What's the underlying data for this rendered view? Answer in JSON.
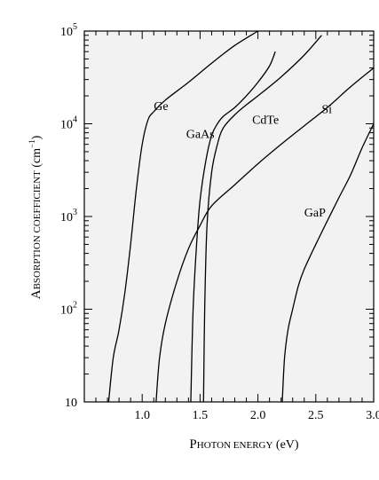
{
  "chart_data": {
    "type": "line",
    "xlabel": "Photon energy (eV)",
    "ylabel": "Absorption coefficient (cm⁻¹)",
    "xlim": [
      0.5,
      3.0
    ],
    "ylim": [
      10,
      100000
    ],
    "y_scale": "log",
    "x_ticks": [
      "1.0",
      "1.5",
      "2.0",
      "2.5",
      "3.0"
    ],
    "y_ticks": [
      {
        "base": "10",
        "exp": ""
      },
      {
        "base": "10",
        "exp": "2"
      },
      {
        "base": "10",
        "exp": "3"
      },
      {
        "base": "10",
        "exp": "4"
      },
      {
        "base": "10",
        "exp": "5"
      }
    ],
    "grid": false,
    "series": [
      {
        "name": "Ge",
        "x": [
          0.71,
          0.75,
          0.8,
          0.85,
          0.9,
          0.95,
          1.0,
          1.05,
          1.1,
          1.2,
          1.4,
          1.6,
          1.8,
          2.0
        ],
        "y": [
          10,
          30,
          60,
          150,
          500,
          2000,
          6000,
          11000,
          13500,
          18000,
          28000,
          45000,
          70000,
          100000
        ]
      },
      {
        "name": "GaAs",
        "x": [
          1.42,
          1.44,
          1.47,
          1.5,
          1.55,
          1.6,
          1.65,
          1.7,
          1.8,
          1.9,
          2.0,
          2.1,
          2.15
        ],
        "y": [
          10,
          100,
          500,
          1500,
          4000,
          7500,
          10000,
          12000,
          15000,
          20000,
          28000,
          42000,
          60000
        ]
      },
      {
        "name": "CdTe",
        "x": [
          1.53,
          1.54,
          1.56,
          1.6,
          1.65,
          1.7,
          1.8,
          1.9,
          2.0,
          2.2,
          2.4,
          2.55
        ],
        "y": [
          10,
          100,
          800,
          3000,
          6000,
          9000,
          12500,
          16000,
          20000,
          32000,
          55000,
          90000
        ]
      },
      {
        "name": "Si",
        "x": [
          1.12,
          1.15,
          1.2,
          1.3,
          1.4,
          1.5,
          1.6,
          1.8,
          2.0,
          2.2,
          2.4,
          2.6,
          2.8,
          3.0
        ],
        "y": [
          10,
          30,
          70,
          200,
          450,
          800,
          1300,
          2200,
          3700,
          6000,
          9500,
          15000,
          25000,
          40000
        ]
      },
      {
        "name": "GaP",
        "x": [
          2.21,
          2.23,
          2.26,
          2.3,
          2.35,
          2.4,
          2.5,
          2.6,
          2.7,
          2.8,
          2.9,
          3.0
        ],
        "y": [
          10,
          30,
          60,
          100,
          180,
          270,
          500,
          900,
          1600,
          2800,
          5500,
          10000
        ]
      }
    ],
    "label_positions": [
      {
        "name": "Ge",
        "x": 1.1,
        "y": 14000
      },
      {
        "name": "GaAs",
        "x": 1.38,
        "y": 7000
      },
      {
        "name": "CdTe",
        "x": 1.95,
        "y": 10000
      },
      {
        "name": "Si",
        "x": 2.55,
        "y": 13000
      },
      {
        "name": "GaP",
        "x": 2.4,
        "y": 1000
      }
    ]
  }
}
